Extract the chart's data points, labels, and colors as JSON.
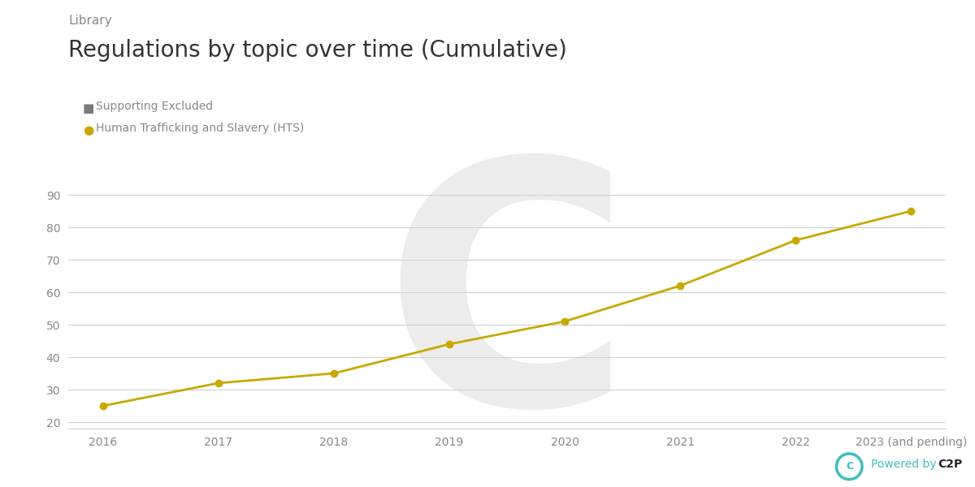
{
  "title": "Regulations by topic over time (Cumulative)",
  "subtitle": "Library",
  "legend_items": [
    {
      "label": "Supporting Excluded",
      "color": "#7a7a7a",
      "marker": "s"
    },
    {
      "label": "Human Trafficking and Slavery (HTS)",
      "color": "#C8A800",
      "marker": "o"
    }
  ],
  "x_labels": [
    "2016",
    "2017",
    "2018",
    "2019",
    "2020",
    "2021",
    "2022",
    "2023 (and pending)"
  ],
  "hts_values": [
    25,
    32,
    35,
    44,
    51,
    62,
    76,
    85
  ],
  "y_ticks": [
    20,
    30,
    40,
    50,
    60,
    70,
    80,
    90
  ],
  "y_min": 18,
  "y_max": 93,
  "line_color": "#C8A800",
  "line_width": 2,
  "marker_size": 6,
  "bg_color": "#ffffff",
  "plot_bg_color": "#ffffff",
  "watermark_color": "#ececec",
  "axis_color": "#d0d0d0",
  "tick_color": "#888888",
  "title_color": "#333333",
  "subtitle_color": "#888888",
  "powered_color": "#3dbdbd",
  "powered_c2p_color": "#222222"
}
